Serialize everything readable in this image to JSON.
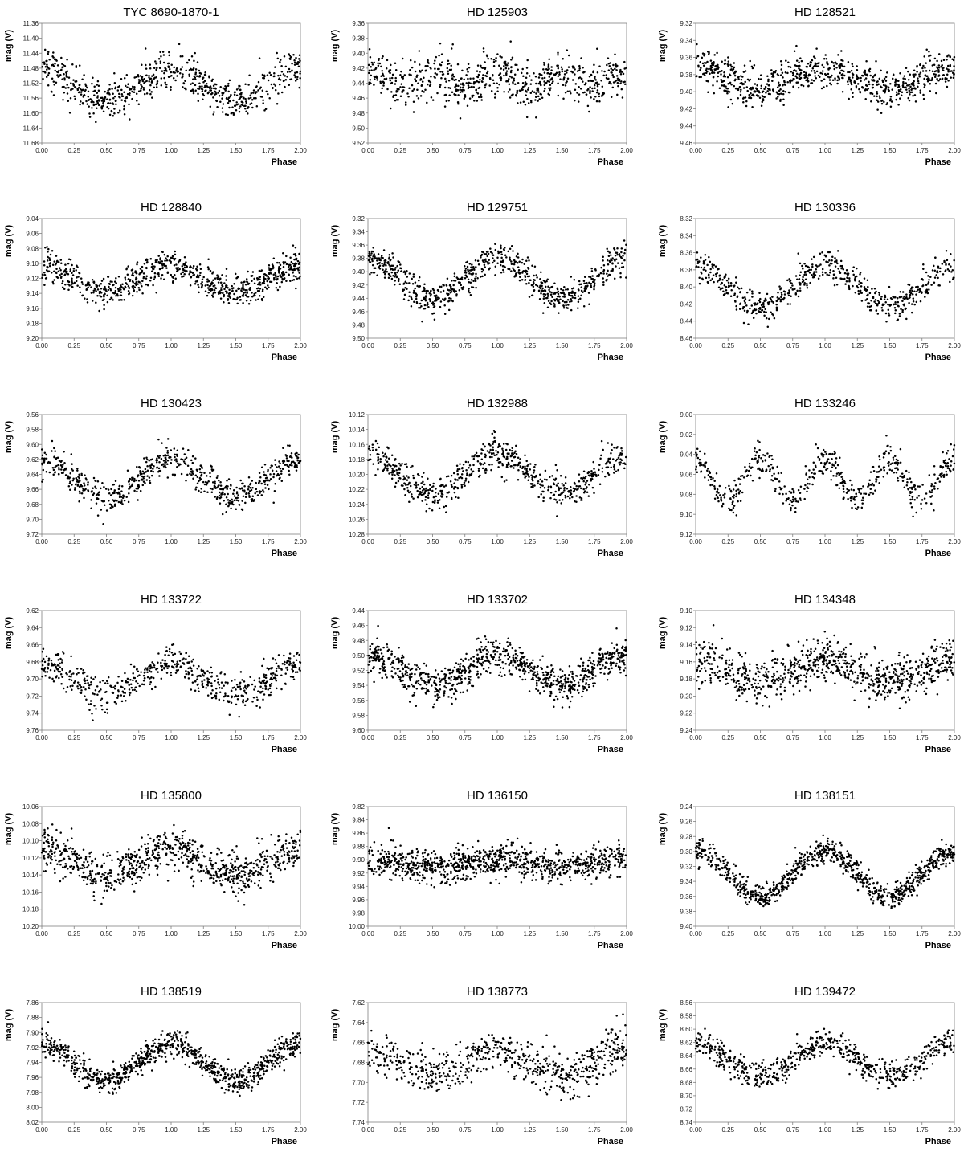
{
  "chart_data": [
    {
      "type": "scatter",
      "title": "TYC 8690-1870-1",
      "xlabel": "Phase",
      "ylabel": "mag (V)",
      "xlim": [
        0,
        2
      ],
      "xticks": [
        "0.00",
        "0.25",
        "0.50",
        "0.75",
        "1.00",
        "1.25",
        "1.50",
        "1.75",
        "2.00"
      ],
      "ylim": [
        11.36,
        11.68
      ],
      "yticks": [
        "11.36",
        "11.40",
        "11.44",
        "11.48",
        "11.52",
        "11.56",
        "11.60",
        "11.64",
        "11.68"
      ],
      "curve": {
        "mean": 11.525,
        "amplitude": 0.04,
        "harmonic": 1,
        "phase_of_max": 0.0
      },
      "scatter_sd": 0.025,
      "n_points": 700
    },
    {
      "type": "scatter",
      "title": "HD 125903",
      "xlabel": "Phase",
      "ylabel": "mag (V)",
      "xlim": [
        0,
        2
      ],
      "xticks": [
        "0.00",
        "0.25",
        "0.50",
        "0.75",
        "1.00",
        "1.25",
        "1.50",
        "1.75",
        "2.00"
      ],
      "ylim": [
        9.36,
        9.52
      ],
      "yticks": [
        "9.36",
        "9.38",
        "9.40",
        "9.42",
        "9.44",
        "9.46",
        "9.48",
        "9.50",
        "9.52"
      ],
      "curve": {
        "mean": 9.435,
        "amplitude": 0.01,
        "harmonic": 2,
        "phase_of_max": 0.0
      },
      "scatter_sd": 0.016,
      "n_points": 700
    },
    {
      "type": "scatter",
      "title": "HD 128521",
      "xlabel": "Phase",
      "ylabel": "mag (V)",
      "xlim": [
        0,
        2
      ],
      "xticks": [
        "0.00",
        "0.25",
        "0.50",
        "0.75",
        "1.00",
        "1.25",
        "1.50",
        "1.75",
        "2.00"
      ],
      "ylim": [
        9.32,
        9.46
      ],
      "yticks": [
        "9.32",
        "9.34",
        "9.36",
        "9.38",
        "9.40",
        "9.42",
        "9.44",
        "9.46"
      ],
      "curve": {
        "mean": 9.385,
        "amplitude": 0.012,
        "harmonic": 1,
        "phase_of_max": 0.0
      },
      "scatter_sd": 0.011,
      "n_points": 800
    },
    {
      "type": "scatter",
      "title": "HD 128840",
      "xlabel": "Phase",
      "ylabel": "mag (V)",
      "xlim": [
        0,
        2
      ],
      "xticks": [
        "0.00",
        "0.25",
        "0.50",
        "0.75",
        "1.00",
        "1.25",
        "1.50",
        "1.75",
        "2.00"
      ],
      "ylim": [
        9.04,
        9.2
      ],
      "yticks": [
        "9.04",
        "9.06",
        "9.08",
        "9.10",
        "9.12",
        "9.14",
        "9.16",
        "9.18",
        "9.20"
      ],
      "curve": {
        "mean": 9.12,
        "amplitude": 0.018,
        "harmonic": 1,
        "phase_of_max": 0.0
      },
      "scatter_sd": 0.01,
      "n_points": 800
    },
    {
      "type": "scatter",
      "title": "HD 129751",
      "xlabel": "Phase",
      "ylabel": "mag (V)",
      "xlim": [
        0,
        2
      ],
      "xticks": [
        "0.00",
        "0.25",
        "0.50",
        "0.75",
        "1.00",
        "1.25",
        "1.50",
        "1.75",
        "2.00"
      ],
      "ylim": [
        9.32,
        9.5
      ],
      "yticks": [
        "9.32",
        "9.34",
        "9.36",
        "9.38",
        "9.40",
        "9.42",
        "9.44",
        "9.46",
        "9.48",
        "9.50"
      ],
      "curve": {
        "mean": 9.41,
        "amplitude": 0.03,
        "harmonic": 1,
        "phase_of_max": 0.0
      },
      "scatter_sd": 0.012,
      "n_points": 750
    },
    {
      "type": "scatter",
      "title": "HD 130336",
      "xlabel": "Phase",
      "ylabel": "mag (V)",
      "xlim": [
        0,
        2
      ],
      "xticks": [
        "0.00",
        "0.25",
        "0.50",
        "0.75",
        "1.00",
        "1.25",
        "1.50",
        "1.75",
        "2.00"
      ],
      "ylim": [
        8.32,
        8.46
      ],
      "yticks": [
        "8.32",
        "8.34",
        "8.36",
        "8.38",
        "8.40",
        "8.42",
        "8.44",
        "8.46"
      ],
      "curve": {
        "mean": 8.4,
        "amplitude": 0.024,
        "harmonic": 1,
        "phase_of_max": 0.0
      },
      "scatter_sd": 0.009,
      "n_points": 600
    },
    {
      "type": "scatter",
      "title": "HD 130423",
      "xlabel": "Phase",
      "ylabel": "mag (V)",
      "xlim": [
        0,
        2
      ],
      "xticks": [
        "0.00",
        "0.25",
        "0.50",
        "0.75",
        "1.00",
        "1.25",
        "1.50",
        "1.75",
        "2.00"
      ],
      "ylim": [
        9.56,
        9.72
      ],
      "yticks": [
        "9.56",
        "9.58",
        "9.60",
        "9.62",
        "9.64",
        "9.66",
        "9.68",
        "9.70",
        "9.72"
      ],
      "curve": {
        "mean": 9.645,
        "amplitude": 0.025,
        "harmonic": 1,
        "phase_of_max": 0.0
      },
      "scatter_sd": 0.01,
      "n_points": 650
    },
    {
      "type": "scatter",
      "title": "HD 132988",
      "xlabel": "Phase",
      "ylabel": "mag (V)",
      "xlim": [
        0,
        2
      ],
      "xticks": [
        "0.00",
        "0.25",
        "0.50",
        "0.75",
        "1.00",
        "1.25",
        "1.50",
        "1.75",
        "2.00"
      ],
      "ylim": [
        10.12,
        10.28
      ],
      "yticks": [
        "10.12",
        "10.14",
        "10.16",
        "10.18",
        "10.20",
        "10.22",
        "10.24",
        "10.26",
        "10.28"
      ],
      "curve": {
        "mean": 10.2,
        "amplitude": 0.025,
        "harmonic": 1,
        "phase_of_max": 0.0
      },
      "scatter_sd": 0.011,
      "n_points": 650
    },
    {
      "type": "scatter",
      "title": "HD 133246",
      "xlabel": "Phase",
      "ylabel": "mag (V)",
      "xlim": [
        0,
        2
      ],
      "xticks": [
        "0.00",
        "0.25",
        "0.50",
        "0.75",
        "1.00",
        "1.25",
        "1.50",
        "1.75",
        "2.00"
      ],
      "ylim": [
        9.0,
        9.12
      ],
      "yticks": [
        "9.00",
        "9.02",
        "9.04",
        "9.06",
        "9.08",
        "9.10",
        "9.12"
      ],
      "curve": {
        "mean": 9.065,
        "amplitude": 0.02,
        "harmonic": 2,
        "phase_of_max": 0.0
      },
      "scatter_sd": 0.008,
      "n_points": 550
    },
    {
      "type": "scatter",
      "title": "HD 133722",
      "xlabel": "Phase",
      "ylabel": "mag (V)",
      "xlim": [
        0,
        2
      ],
      "xticks": [
        "0.00",
        "0.25",
        "0.50",
        "0.75",
        "1.00",
        "1.25",
        "1.50",
        "1.75",
        "2.00"
      ],
      "ylim": [
        9.62,
        9.76
      ],
      "yticks": [
        "9.62",
        "9.64",
        "9.66",
        "9.68",
        "9.70",
        "9.72",
        "9.74",
        "9.76"
      ],
      "curve": {
        "mean": 9.7,
        "amplitude": 0.018,
        "harmonic": 1,
        "phase_of_max": 0.0
      },
      "scatter_sd": 0.01,
      "n_points": 600
    },
    {
      "type": "scatter",
      "title": "HD 133702",
      "xlabel": "Phase",
      "ylabel": "mag (V)",
      "xlim": [
        0,
        2
      ],
      "xticks": [
        "0.00",
        "0.25",
        "0.50",
        "0.75",
        "1.00",
        "1.25",
        "1.50",
        "1.75",
        "2.00"
      ],
      "ylim": [
        9.44,
        9.6
      ],
      "yticks": [
        "9.44",
        "9.46",
        "9.48",
        "9.50",
        "9.52",
        "9.54",
        "9.56",
        "9.58",
        "9.60"
      ],
      "curve": {
        "mean": 9.52,
        "amplitude": 0.02,
        "harmonic": 1,
        "phase_of_max": 0.0
      },
      "scatter_sd": 0.012,
      "n_points": 900
    },
    {
      "type": "scatter",
      "title": "HD 134348",
      "xlabel": "Phase",
      "ylabel": "mag (V)",
      "xlim": [
        0,
        2
      ],
      "xticks": [
        "0.00",
        "0.25",
        "0.50",
        "0.75",
        "1.00",
        "1.25",
        "1.50",
        "1.75",
        "2.00"
      ],
      "ylim": [
        9.1,
        9.24
      ],
      "yticks": [
        "9.10",
        "9.12",
        "9.14",
        "9.16",
        "9.18",
        "9.20",
        "9.22",
        "9.24"
      ],
      "curve": {
        "mean": 9.17,
        "amplitude": 0.012,
        "harmonic": 1,
        "phase_of_max": 0.0
      },
      "scatter_sd": 0.013,
      "n_points": 850
    },
    {
      "type": "scatter",
      "title": "HD 135800",
      "xlabel": "Phase",
      "ylabel": "mag (V)",
      "xlim": [
        0,
        2
      ],
      "xticks": [
        "0.00",
        "0.25",
        "0.50",
        "0.75",
        "1.00",
        "1.25",
        "1.50",
        "1.75",
        "2.00"
      ],
      "ylim": [
        10.06,
        10.2
      ],
      "yticks": [
        "10.06",
        "10.08",
        "10.10",
        "10.12",
        "10.14",
        "10.16",
        "10.18",
        "10.20"
      ],
      "curve": {
        "mean": 10.125,
        "amplitude": 0.015,
        "harmonic": 1,
        "phase_of_max": 0.0
      },
      "scatter_sd": 0.012,
      "n_points": 850
    },
    {
      "type": "scatter",
      "title": "HD 136150",
      "xlabel": "Phase",
      "ylabel": "mag (V)",
      "xlim": [
        0,
        2
      ],
      "xticks": [
        "0.00",
        "0.25",
        "0.50",
        "0.75",
        "1.00",
        "1.25",
        "1.50",
        "1.75",
        "2.00"
      ],
      "ylim": [
        9.82,
        10.0
      ],
      "yticks": [
        "9.82",
        "9.84",
        "9.86",
        "9.88",
        "9.90",
        "9.92",
        "9.94",
        "9.96",
        "9.98",
        "10.00"
      ],
      "curve": {
        "mean": 9.905,
        "amplitude": 0.007,
        "harmonic": 1,
        "phase_of_max": 0.0
      },
      "scatter_sd": 0.012,
      "n_points": 950
    },
    {
      "type": "scatter",
      "title": "HD 138151",
      "xlabel": "Phase",
      "ylabel": "mag (V)",
      "xlim": [
        0,
        2
      ],
      "xticks": [
        "0.00",
        "0.25",
        "0.50",
        "0.75",
        "1.00",
        "1.25",
        "1.50",
        "1.75",
        "2.00"
      ],
      "ylim": [
        9.24,
        9.4
      ],
      "yticks": [
        "9.24",
        "9.26",
        "9.28",
        "9.30",
        "9.32",
        "9.34",
        "9.36",
        "9.38",
        "9.40"
      ],
      "curve": {
        "mean": 9.33,
        "amplitude": 0.03,
        "harmonic": 1,
        "phase_of_max": 0.0
      },
      "scatter_sd": 0.008,
      "n_points": 900
    },
    {
      "type": "scatter",
      "title": "HD 138519",
      "xlabel": "Phase",
      "ylabel": "mag (V)",
      "xlim": [
        0,
        2
      ],
      "xticks": [
        "0.00",
        "0.25",
        "0.50",
        "0.75",
        "1.00",
        "1.25",
        "1.50",
        "1.75",
        "2.00"
      ],
      "ylim": [
        7.86,
        8.02
      ],
      "yticks": [
        "7.86",
        "7.88",
        "7.90",
        "7.92",
        "7.94",
        "7.96",
        "7.98",
        "8.00",
        "8.02"
      ],
      "curve": {
        "mean": 7.94,
        "amplitude": 0.025,
        "harmonic": 1,
        "phase_of_max": 0.0
      },
      "scatter_sd": 0.009,
      "n_points": 900
    },
    {
      "type": "scatter",
      "title": "HD 138773",
      "xlabel": "Phase",
      "ylabel": "mag (V)",
      "xlim": [
        0,
        2
      ],
      "xticks": [
        "0.00",
        "0.25",
        "0.50",
        "0.75",
        "1.00",
        "1.25",
        "1.50",
        "1.75",
        "2.00"
      ],
      "ylim": [
        7.62,
        7.74
      ],
      "yticks": [
        "7.62",
        "7.64",
        "7.66",
        "7.68",
        "7.70",
        "7.72",
        "7.74"
      ],
      "curve": {
        "mean": 7.68,
        "amplitude": 0.012,
        "harmonic": 1,
        "phase_of_max": 0.0
      },
      "scatter_sd": 0.011,
      "n_points": 650
    },
    {
      "type": "scatter",
      "title": "HD 139472",
      "xlabel": "Phase",
      "ylabel": "mag (V)",
      "xlim": [
        0,
        2
      ],
      "xticks": [
        "0.00",
        "0.25",
        "0.50",
        "0.75",
        "1.00",
        "1.25",
        "1.50",
        "1.75",
        "2.00"
      ],
      "ylim": [
        8.56,
        8.74
      ],
      "yticks": [
        "8.56",
        "8.58",
        "8.60",
        "8.62",
        "8.64",
        "8.66",
        "8.68",
        "8.70",
        "8.72",
        "8.74"
      ],
      "curve": {
        "mean": 8.645,
        "amplitude": 0.025,
        "harmonic": 1,
        "phase_of_max": 0.0
      },
      "scatter_sd": 0.01,
      "n_points": 650
    }
  ]
}
